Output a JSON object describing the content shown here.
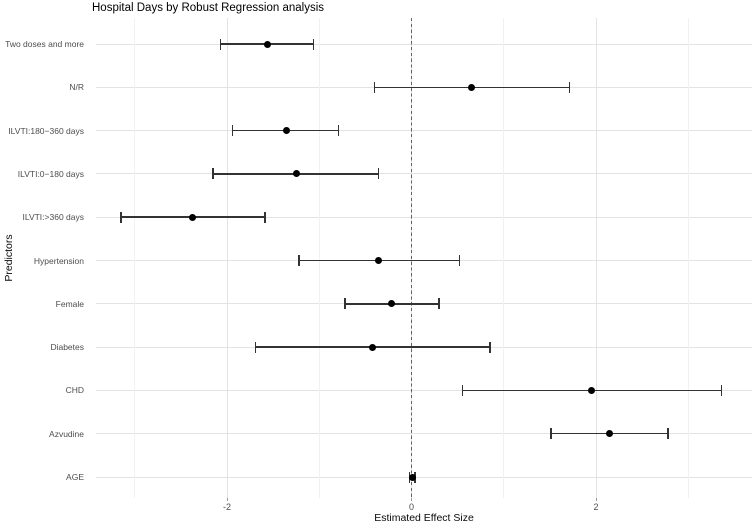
{
  "chart_data": {
    "type": "scatter",
    "subtype": "forest-plot-with-error-bars",
    "title": "Hospital Days by Robust Regression analysis",
    "xlabel": "Estimated Effect Size",
    "ylabel": "Predictors",
    "xlim": [
      -3.42,
      3.69
    ],
    "x_ticks": [
      {
        "value": -2,
        "label": "-2"
      },
      {
        "value": 0,
        "label": "0"
      },
      {
        "value": 2,
        "label": "2"
      }
    ],
    "x_minor_ticks": [
      -3,
      -1,
      1,
      3
    ],
    "grid": true,
    "legend": "none",
    "reference_line": {
      "x": 0,
      "style": "dashed",
      "color": "#ff1f1f"
    },
    "rows": [
      {
        "label": "Two doses and more",
        "estimate": -1.56,
        "ci_low": -2.07,
        "ci_high": -1.06
      },
      {
        "label": "N/R",
        "estimate": 0.65,
        "ci_low": -0.4,
        "ci_high": 1.71
      },
      {
        "label": "ILVTI:180−360 days",
        "estimate": -1.36,
        "ci_low": -1.94,
        "ci_high": -0.79
      },
      {
        "label": "ILVTI:0−180 days",
        "estimate": -1.25,
        "ci_low": -2.15,
        "ci_high": -0.36
      },
      {
        "label": "ILVTI:>360 days",
        "estimate": -2.37,
        "ci_low": -3.15,
        "ci_high": -1.59
      },
      {
        "label": "Hypertension",
        "estimate": -0.36,
        "ci_low": -1.22,
        "ci_high": 0.52
      },
      {
        "label": "Female",
        "estimate": -0.22,
        "ci_low": -0.72,
        "ci_high": 0.3
      },
      {
        "label": "Diabetes",
        "estimate": -0.42,
        "ci_low": -1.69,
        "ci_high": 0.85
      },
      {
        "label": "CHD",
        "estimate": 1.95,
        "ci_low": 0.55,
        "ci_high": 3.36
      },
      {
        "label": "Azvudine",
        "estimate": 2.15,
        "ci_low": 1.51,
        "ci_high": 2.78
      },
      {
        "label": "AGE",
        "estimate": 0.01,
        "ci_low": -0.02,
        "ci_high": 0.04
      }
    ],
    "style": {
      "point_color": "#000000",
      "errorbar_color": "#333333",
      "grid_major_color": "#e3e3e3",
      "grid_minor_color": "#f1f1f1",
      "axis_text_color": "#4d4d4d",
      "background": "#ffffff"
    }
  }
}
